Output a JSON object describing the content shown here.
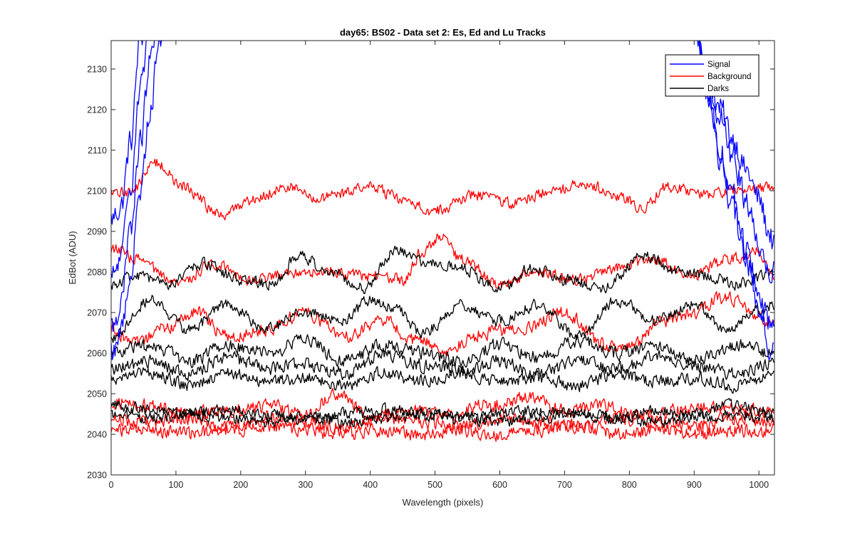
{
  "chart_data": {
    "type": "line",
    "title": "day65: BS02 - Data set 2: Es, Ed and Lu Tracks",
    "xlabel": "Wavelength (pixels)",
    "ylabel": "EdBot (ADU)",
    "xlim": [
      0,
      1024
    ],
    "ylim": [
      2030,
      2137
    ],
    "xticks": [
      0,
      100,
      200,
      300,
      400,
      500,
      600,
      700,
      800,
      900,
      1000
    ],
    "yticks": [
      2030,
      2040,
      2050,
      2060,
      2070,
      2080,
      2090,
      2100,
      2110,
      2120,
      2130
    ],
    "legend_position": "top-right",
    "legend": [
      {
        "label": "Signal",
        "color": "#0000ff"
      },
      {
        "label": "Background",
        "color": "#ff0000"
      },
      {
        "label": "Darks",
        "color": "#000000"
      }
    ],
    "series": [
      {
        "group": "Signal",
        "color": "#0000ff",
        "noise": 3,
        "x": [
          0,
          15,
          30,
          45,
          60,
          75,
          80,
          900,
          920,
          940,
          960,
          980,
          1000,
          1015,
          1024
        ],
        "y": [
          2093,
          2096,
          2112,
          2138,
          2142,
          2142,
          2140,
          2142,
          2128,
          2120,
          2113,
          2105,
          2098,
          2090,
          2086
        ]
      },
      {
        "group": "Signal",
        "color": "#0000ff",
        "noise": 3,
        "x": [
          0,
          15,
          30,
          45,
          60,
          75,
          80,
          900,
          920,
          940,
          960,
          980,
          1000,
          1015,
          1024
        ],
        "y": [
          2078,
          2083,
          2102,
          2126,
          2140,
          2142,
          2140,
          2142,
          2130,
          2118,
          2108,
          2098,
          2087,
          2080,
          2082
        ]
      },
      {
        "group": "Signal",
        "color": "#0000ff",
        "noise": 3,
        "x": [
          0,
          15,
          30,
          45,
          60,
          75,
          80,
          900,
          920,
          940,
          960,
          980,
          1000,
          1015,
          1024
        ],
        "y": [
          2066,
          2072,
          2090,
          2112,
          2132,
          2142,
          2140,
          2142,
          2126,
          2110,
          2098,
          2086,
          2074,
          2062,
          2064
        ]
      },
      {
        "group": "Signal",
        "color": "#0000ff",
        "noise": 3,
        "x": [
          0,
          15,
          30,
          45,
          60,
          75,
          80,
          900,
          920,
          940,
          960,
          980,
          1000,
          1015,
          1024
        ],
        "y": [
          2060,
          2065,
          2080,
          2100,
          2120,
          2138,
          2140,
          2142,
          2124,
          2108,
          2095,
          2083,
          2072,
          2068,
          2070
        ]
      },
      {
        "group": "Background",
        "color": "#ff0000",
        "noise": 1.3,
        "x": [
          0,
          30,
          70,
          110,
          170,
          220,
          270,
          320,
          400,
          460,
          500,
          560,
          620,
          680,
          730,
          790,
          820,
          860,
          920,
          970,
          1024
        ],
        "y": [
          2099,
          2100,
          2107,
          2101,
          2094,
          2098,
          2101,
          2098,
          2101,
          2097,
          2095,
          2099,
          2097,
          2100,
          2102,
          2098,
          2096,
          2101,
          2099,
          2100,
          2101
        ]
      },
      {
        "group": "Background",
        "color": "#ff0000",
        "noise": 1.3,
        "x": [
          0,
          40,
          100,
          160,
          220,
          280,
          340,
          400,
          450,
          480,
          510,
          540,
          600,
          660,
          720,
          780,
          840,
          900,
          950,
          1000,
          1024
        ],
        "y": [
          2086,
          2083,
          2077,
          2082,
          2078,
          2080,
          2080,
          2079,
          2078,
          2085,
          2089,
          2083,
          2077,
          2080,
          2078,
          2081,
          2083,
          2079,
          2083,
          2085,
          2079
        ]
      },
      {
        "group": "Background",
        "color": "#ff0000",
        "noise": 1.5,
        "x": [
          0,
          40,
          80,
          130,
          180,
          240,
          300,
          360,
          420,
          470,
          520,
          580,
          640,
          700,
          760,
          800,
          850,
          900,
          950,
          1000,
          1024
        ],
        "y": [
          2066,
          2062,
          2066,
          2070,
          2064,
          2066,
          2070,
          2064,
          2068,
          2063,
          2061,
          2065,
          2066,
          2070,
          2062,
          2061,
          2068,
          2070,
          2074,
          2069,
          2067
        ]
      },
      {
        "group": "Background",
        "color": "#ff0000",
        "noise": 1.5,
        "x": [
          0,
          60,
          120,
          180,
          240,
          300,
          350,
          400,
          460,
          520,
          580,
          640,
          700,
          760,
          820,
          880,
          940,
          1000,
          1024
        ],
        "y": [
          2048,
          2047,
          2045,
          2046,
          2047,
          2045,
          2050,
          2044,
          2046,
          2045,
          2047,
          2049,
          2046,
          2047,
          2044,
          2046,
          2047,
          2046,
          2045
        ]
      },
      {
        "group": "Background",
        "color": "#ff0000",
        "noise": 1.5,
        "x": [
          0,
          60,
          120,
          180,
          240,
          300,
          360,
          420,
          480,
          540,
          600,
          660,
          720,
          780,
          840,
          900,
          960,
          1024
        ],
        "y": [
          2044,
          2043,
          2044,
          2042,
          2044,
          2043,
          2042,
          2044,
          2043,
          2042,
          2044,
          2043,
          2042,
          2044,
          2043,
          2042,
          2044,
          2043
        ]
      },
      {
        "group": "Background",
        "color": "#ff0000",
        "noise": 1.5,
        "x": [
          0,
          60,
          120,
          180,
          240,
          300,
          360,
          420,
          480,
          540,
          600,
          660,
          720,
          780,
          840,
          900,
          960,
          1024
        ],
        "y": [
          2041,
          2041,
          2040,
          2041,
          2042,
          2041,
          2040,
          2041,
          2040,
          2041,
          2040,
          2041,
          2042,
          2040,
          2041,
          2040,
          2041,
          2041
        ]
      },
      {
        "group": "Darks",
        "color": "#000000",
        "noise": 1.3,
        "x": [
          0,
          40,
          90,
          140,
          200,
          250,
          290,
          340,
          390,
          440,
          490,
          540,
          600,
          650,
          700,
          760,
          820,
          880,
          920,
          970,
          1024
        ],
        "y": [
          2077,
          2079,
          2077,
          2082,
          2078,
          2077,
          2084,
          2080,
          2076,
          2085,
          2082,
          2081,
          2076,
          2081,
          2078,
          2076,
          2084,
          2080,
          2079,
          2077,
          2080
        ]
      },
      {
        "group": "Darks",
        "color": "#000000",
        "noise": 1.3,
        "x": [
          0,
          60,
          120,
          180,
          240,
          300,
          360,
          400,
          440,
          480,
          540,
          600,
          660,
          720,
          780,
          840,
          900,
          950,
          1000,
          1024
        ],
        "y": [
          2064,
          2073,
          2066,
          2072,
          2066,
          2070,
          2068,
          2073,
          2071,
          2065,
          2072,
          2068,
          2072,
          2064,
          2073,
          2068,
          2072,
          2066,
          2071,
          2072
        ]
      },
      {
        "group": "Darks",
        "color": "#000000",
        "noise": 1.5,
        "x": [
          0,
          60,
          120,
          180,
          240,
          300,
          360,
          420,
          480,
          540,
          600,
          660,
          720,
          780,
          840,
          900,
          960,
          1024
        ],
        "y": [
          2060,
          2062,
          2058,
          2062,
          2060,
          2063,
          2058,
          2062,
          2060,
          2058,
          2062,
          2059,
          2063,
          2060,
          2062,
          2058,
          2062,
          2060
        ]
      },
      {
        "group": "Darks",
        "color": "#000000",
        "noise": 1.5,
        "x": [
          0,
          60,
          120,
          180,
          240,
          300,
          360,
          420,
          480,
          540,
          600,
          660,
          720,
          780,
          840,
          900,
          960,
          1024
        ],
        "y": [
          2056,
          2058,
          2055,
          2059,
          2056,
          2057,
          2055,
          2060,
          2057,
          2056,
          2058,
          2055,
          2058,
          2056,
          2059,
          2057,
          2055,
          2058
        ]
      },
      {
        "group": "Darks",
        "color": "#000000",
        "noise": 1.4,
        "x": [
          0,
          60,
          120,
          180,
          240,
          300,
          360,
          420,
          480,
          540,
          600,
          660,
          720,
          780,
          840,
          900,
          960,
          1024
        ],
        "y": [
          2054,
          2055,
          2052,
          2055,
          2053,
          2054,
          2052,
          2055,
          2053,
          2055,
          2053,
          2054,
          2052,
          2055,
          2053,
          2054,
          2052,
          2054
        ]
      },
      {
        "group": "Darks",
        "color": "#000000",
        "noise": 1.3,
        "x": [
          0,
          60,
          120,
          180,
          240,
          300,
          360,
          420,
          480,
          540,
          600,
          660,
          720,
          780,
          840,
          900,
          960,
          1024
        ],
        "y": [
          2047,
          2046,
          2045,
          2046,
          2045,
          2044,
          2045,
          2046,
          2045,
          2044,
          2045,
          2046,
          2045,
          2044,
          2046,
          2045,
          2047,
          2045
        ]
      },
      {
        "group": "Darks",
        "color": "#000000",
        "noise": 1.3,
        "x": [
          0,
          60,
          120,
          180,
          240,
          300,
          360,
          420,
          480,
          540,
          600,
          660,
          720,
          780,
          840,
          900,
          960,
          1024
        ],
        "y": [
          2045,
          2044,
          2045,
          2044,
          2043,
          2044,
          2043,
          2044,
          2045,
          2044,
          2043,
          2044,
          2045,
          2044,
          2043,
          2044,
          2045,
          2044
        ]
      }
    ]
  }
}
